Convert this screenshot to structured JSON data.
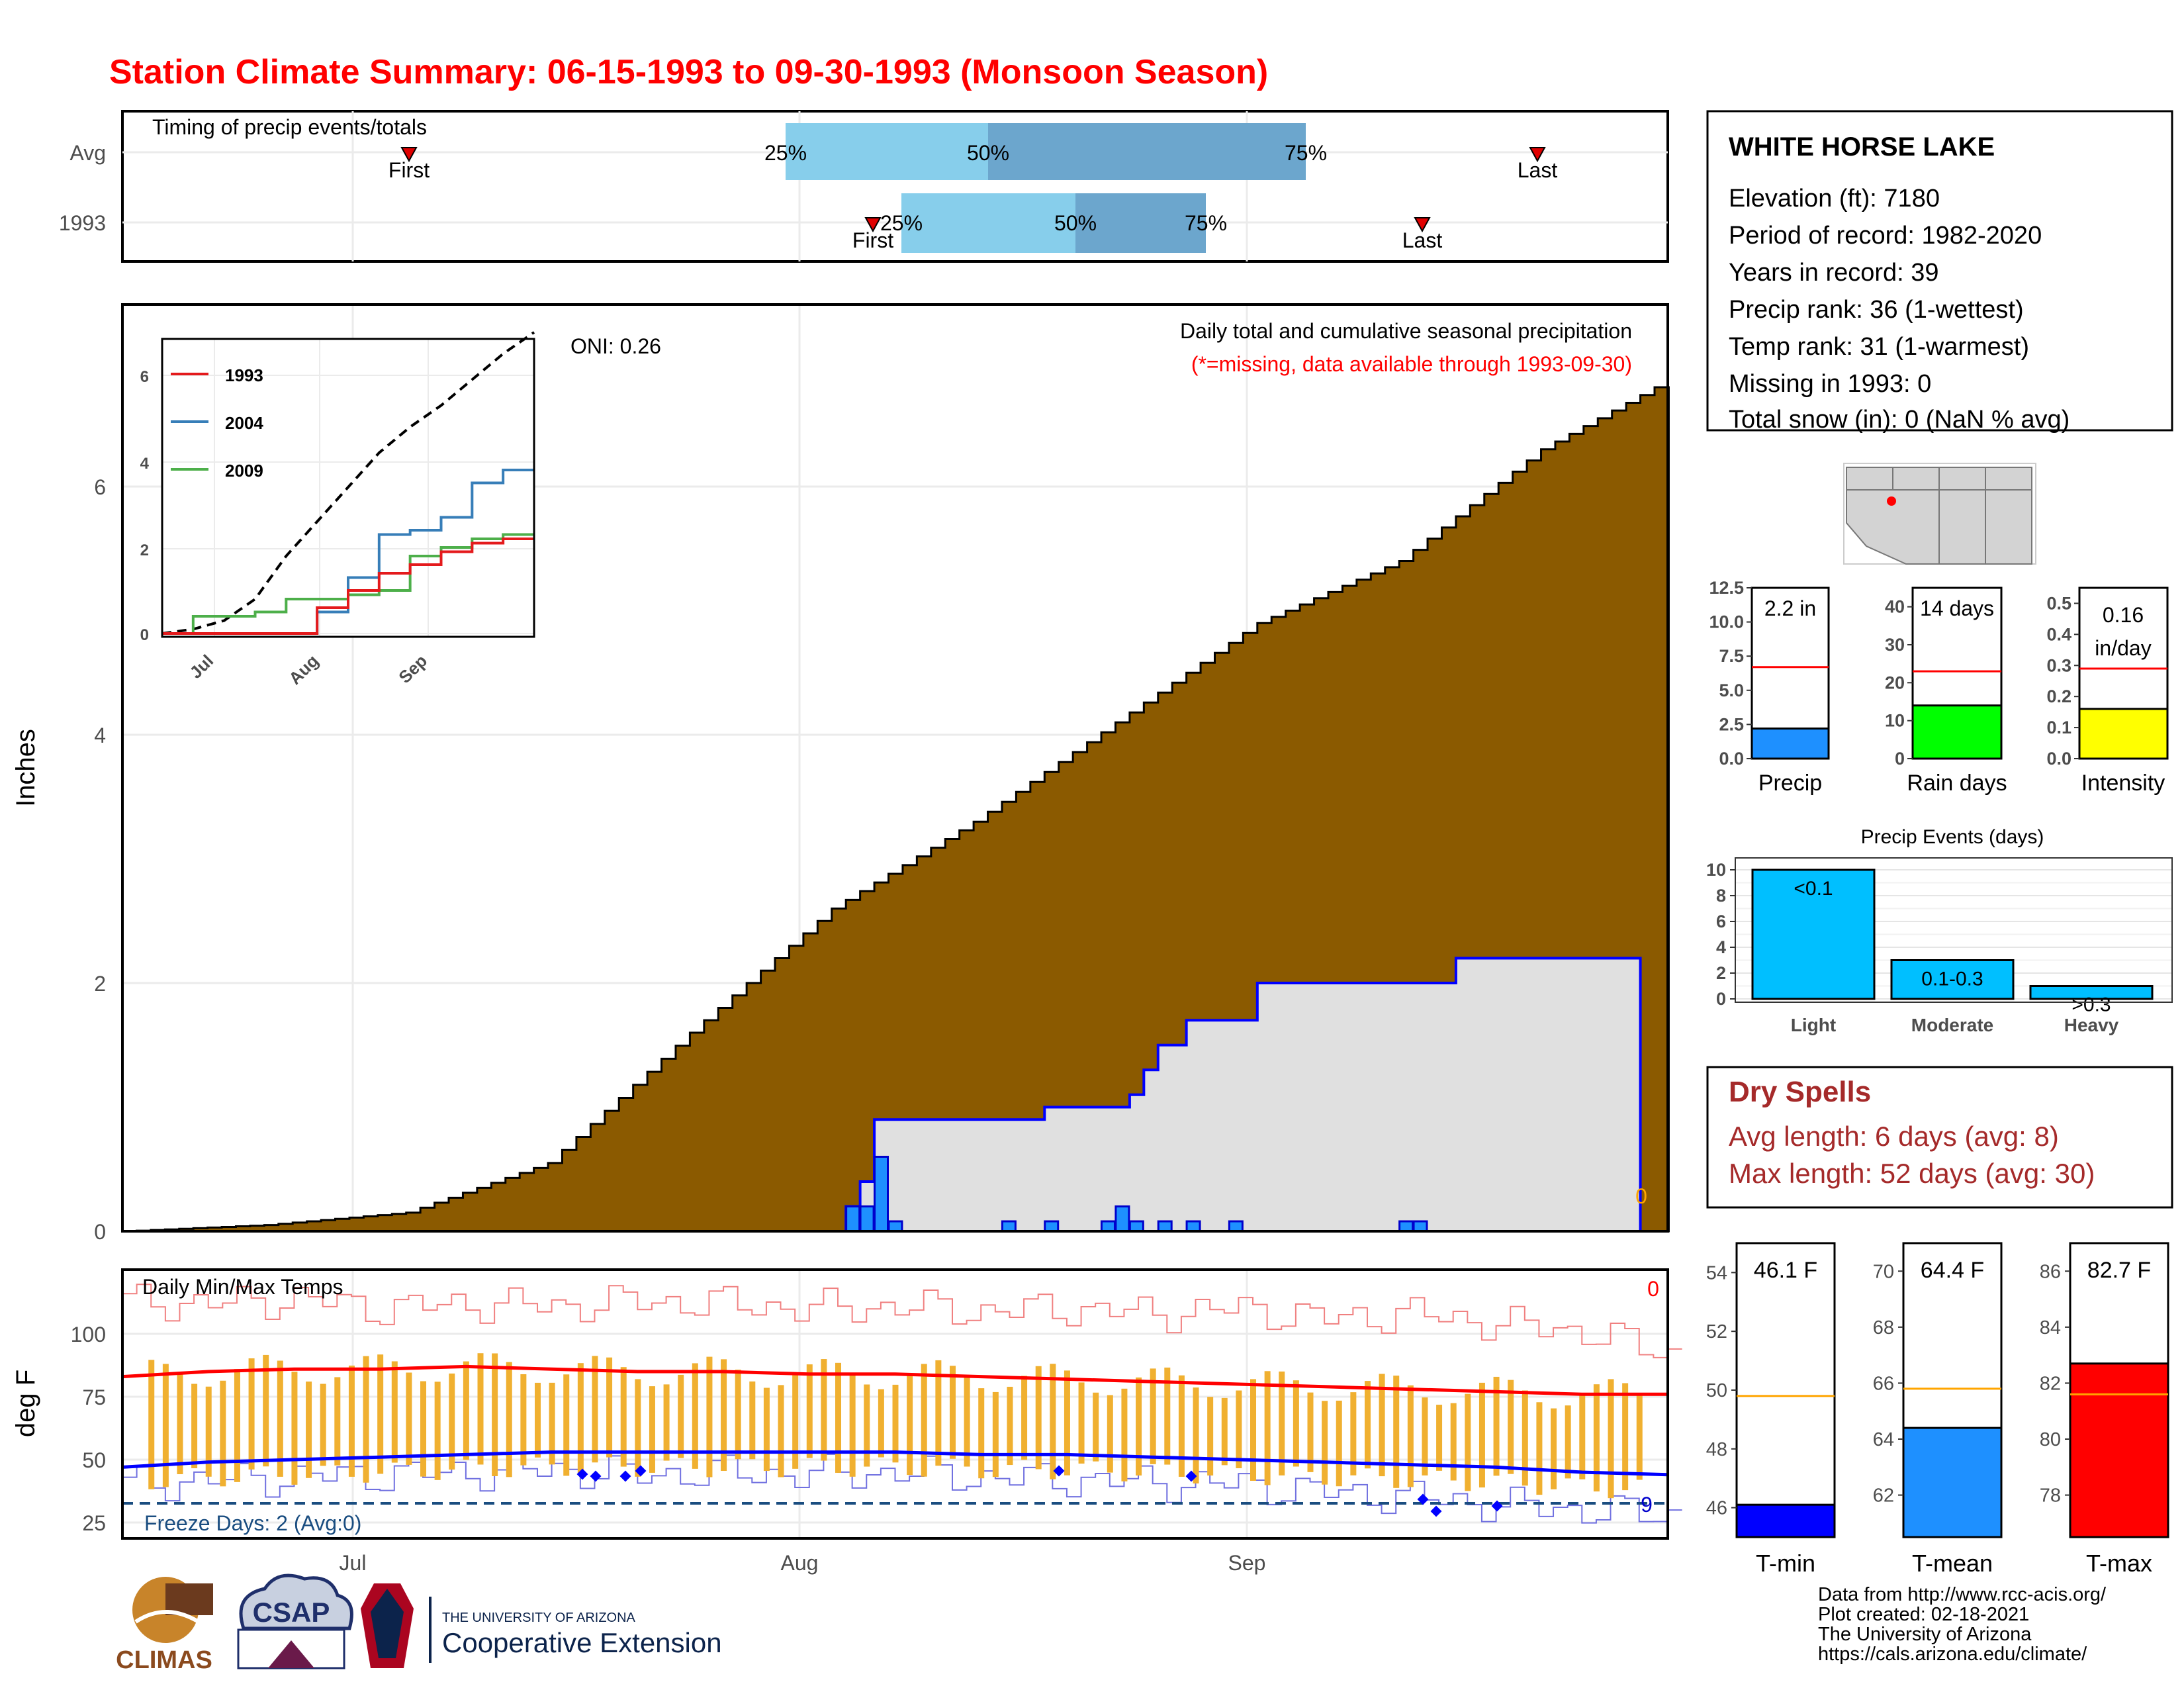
{
  "title": "Station Climate Summary: 06-15-1993 to 09-30-1993 (Monsoon Season)",
  "colors": {
    "title": "#ff0000",
    "precip_fill": "#8b5a00",
    "normal_fill": "#e0e0e0",
    "daily_bar": "#1e90ff",
    "timing_light": "#87ceeb",
    "timing_dark": "#6ca6cd",
    "tmax_line": "#ff0000",
    "tmin_line": "#0000ff",
    "range_bar": "#f0b030",
    "dry_spells": "#a52a2a",
    "inset_1993": "#e41a1c",
    "inset_2004": "#377eb8",
    "inset_2009": "#4daf4a"
  },
  "timing": {
    "title": "Timing of precip events/totals",
    "rows": [
      {
        "label": "Avg",
        "first": "First",
        "last": "Last",
        "p25": "25%",
        "p50": "50%",
        "p75": "75%",
        "first_doy": 12,
        "p25_doy": 44,
        "p50_doy": 54,
        "p75_doy": 68,
        "last_doy": 86
      },
      {
        "label": "1993",
        "first": "First",
        "last": "Last",
        "p25": "25%",
        "p50": "50%",
        "p75": "75%",
        "first_doy": 50,
        "p25_doy": 51,
        "p50_doy": 59,
        "p75_doy": 65,
        "last_doy": 82
      }
    ]
  },
  "precip_panel": {
    "ylabel": "Inches",
    "header": "Daily total and cumulative seasonal precipitation",
    "note": "(*=missing, data available through 1993-09-30)",
    "oni": "ONI: 0.26",
    "zero_label": "0",
    "y_ticks": [
      "0",
      "2",
      "4",
      "6"
    ],
    "ylim": [
      0,
      7.5
    ]
  },
  "inset": {
    "series": [
      {
        "name": "1993",
        "color": "#e41a1c"
      },
      {
        "name": "2004",
        "color": "#377eb8"
      },
      {
        "name": "2009",
        "color": "#4daf4a"
      }
    ],
    "y_ticks": [
      "0",
      "2",
      "4",
      "6"
    ],
    "x_ticks": [
      "Jul",
      "Aug",
      "Sep"
    ]
  },
  "temp_panel": {
    "title": "Daily Min/Max Temps",
    "ylabel": "deg F",
    "y_ticks": [
      "25",
      "50",
      "75",
      "100"
    ],
    "freeze": "Freeze Days: 2 (Avg:0)",
    "right_top": "0",
    "right_bottom": "9"
  },
  "x_ticks": [
    "Jul",
    "Aug",
    "Sep"
  ],
  "station": {
    "name": "WHITE HORSE LAKE",
    "lines": [
      "Elevation (ft): 7180",
      "Period of record: 1982-2020",
      "Years in record: 39",
      "Precip rank: 36 (1-wettest)",
      "Temp rank: 31 (1-warmest)",
      "Missing in 1993: 0",
      "Total snow (in): 0 (NaN % avg)"
    ]
  },
  "mini_bars": [
    {
      "label": "Precip",
      "value_text": "2.2 in",
      "value": 2.2,
      "avg": 6.7,
      "ymax": 12.5,
      "color": "#1e90ff",
      "ticks": [
        "0.0",
        "2.5",
        "5.0",
        "7.5",
        "10.0",
        "12.5"
      ]
    },
    {
      "label": "Rain days",
      "value_text": "14 days",
      "value": 14,
      "avg": 23,
      "ymax": 45,
      "color": "#00ff00",
      "ticks": [
        "0",
        "10",
        "20",
        "30",
        "40"
      ]
    },
    {
      "label": "Intensity",
      "value_text": "0.16",
      "value_text2": "in/day",
      "value": 0.16,
      "avg": 0.29,
      "ymax": 0.55,
      "color": "#ffff00",
      "ticks": [
        "0.0",
        "0.1",
        "0.2",
        "0.3",
        "0.4",
        "0.5"
      ]
    }
  ],
  "events": {
    "title": "Precip Events (days)",
    "categories": [
      "Light",
      "Moderate",
      "Heavy"
    ],
    "bar_labels": [
      "<0.1",
      "0.1-0.3",
      ">0.3"
    ],
    "values": [
      10,
      3,
      1
    ],
    "ticks": [
      "0",
      "2",
      "4",
      "6",
      "8",
      "10"
    ],
    "color": "#00bfff"
  },
  "dry_spells": {
    "title": "Dry Spells",
    "avg": "Avg length: 6 days (avg: 8)",
    "max": "Max length: 52 days (avg: 30)"
  },
  "temp_bars": [
    {
      "label": "T-min",
      "value_text": "46.1 F",
      "value": 46.1,
      "avg": 49.8,
      "ymin": 45,
      "ymax": 55,
      "color": "#0000ff",
      "ticks": [
        "46",
        "48",
        "50",
        "52",
        "54"
      ]
    },
    {
      "label": "T-mean",
      "value_text": "64.4 F",
      "value": 64.4,
      "avg": 65.8,
      "ymin": 60.5,
      "ymax": 71,
      "color": "#1e90ff",
      "ticks": [
        "62",
        "64",
        "66",
        "68",
        "70"
      ]
    },
    {
      "label": "T-max",
      "value_text": "82.7 F",
      "value": 82.7,
      "avg": 81.6,
      "ymin": 76.5,
      "ymax": 87,
      "color": "#ff0000",
      "ticks": [
        "78",
        "80",
        "82",
        "84",
        "86"
      ]
    }
  ],
  "footer": {
    "lines": [
      "Data from http://www.rcc-acis.org/",
      "Plot created: 02-18-2021",
      "The University of Arizona",
      "https://cals.arizona.edu/climate/"
    ],
    "logo_climas": "CLIMAS",
    "logo_csap": "CSAP",
    "ua_top": "THE UNIVERSITY OF ARIZONA",
    "ua_bottom": "Cooperative Extension"
  },
  "chart_data": [
    {
      "type": "area",
      "title": "Daily total and cumulative seasonal precipitation",
      "ylabel": "Inches",
      "ylim": [
        0,
        7.5
      ],
      "x": "day of season (0 = Jun 15)",
      "series": [
        {
          "name": "Average cumulative",
          "x": [
            0,
            10,
            20,
            30,
            40,
            50,
            60,
            70,
            80,
            90,
            100,
            108
          ],
          "values": [
            0.0,
            0.05,
            0.15,
            0.55,
            1.6,
            2.6,
            3.3,
            4.1,
            4.9,
            5.4,
            6.3,
            6.8
          ]
        },
        {
          "name": "1993 cumulative",
          "x": [
            0,
            51,
            52,
            53,
            55,
            62,
            65,
            70,
            71,
            72,
            73,
            75,
            80,
            90,
            94,
            107
          ],
          "values": [
            0,
            0.2,
            0.4,
            0.9,
            0.9,
            0.9,
            1.0,
            1.0,
            1.1,
            1.3,
            1.5,
            1.7,
            2.0,
            2.0,
            2.2,
            2.2
          ]
        },
        {
          "name": "1993 daily",
          "x": [
            52,
            53,
            54,
            55,
            63,
            66,
            70,
            71,
            72,
            74,
            76,
            79,
            91,
            92
          ],
          "values": [
            0.2,
            0.2,
            0.6,
            0.08,
            0.08,
            0.08,
            0.08,
            0.2,
            0.08,
            0.08,
            0.08,
            0.08,
            0.08,
            0.08
          ]
        }
      ]
    },
    {
      "type": "line",
      "title": "Daily Min/Max Temps",
      "ylabel": "deg F",
      "ylim": [
        20,
        120
      ],
      "series": [
        {
          "name": "Avg max",
          "values": [
            83,
            85,
            86,
            86,
            87,
            86,
            85,
            85,
            84,
            84,
            83,
            82,
            81,
            80,
            79,
            78,
            77,
            76,
            76
          ]
        },
        {
          "name": "Avg min",
          "values": [
            47,
            49,
            50,
            51,
            52,
            53,
            53,
            53,
            53,
            53,
            52,
            52,
            51,
            50,
            49,
            48,
            47,
            45,
            44
          ]
        },
        {
          "name": "Record high",
          "values": [
            113,
            112,
            114,
            110,
            112,
            111,
            113,
            112,
            110,
            111,
            109,
            110,
            108,
            110,
            106,
            108,
            104,
            101,
            92
          ]
        },
        {
          "name": "Record low",
          "values": [
            40,
            42,
            43,
            44,
            45,
            46,
            44,
            45,
            44,
            45,
            43,
            42,
            41,
            40,
            37,
            35,
            32,
            30,
            28
          ]
        }
      ]
    },
    {
      "type": "line",
      "title": "",
      "x_ticks": [
        "Jul",
        "Aug",
        "Sep"
      ],
      "series": [
        {
          "name": "1993",
          "values": [
            0,
            0,
            0,
            0,
            0,
            0.6,
            1.0,
            1.4,
            1.6,
            1.9,
            2.1,
            2.2,
            2.2
          ]
        },
        {
          "name": "2004",
          "values": [
            0,
            0,
            0,
            0,
            0,
            0.5,
            1.3,
            2.3,
            2.4,
            2.7,
            3.5,
            3.8,
            3.8
          ]
        },
        {
          "name": "2009",
          "values": [
            0,
            0.4,
            0.4,
            0.5,
            0.8,
            0.8,
            0.9,
            1.0,
            1.8,
            2.0,
            2.2,
            2.3,
            2.3
          ]
        },
        {
          "name": "Average",
          "values": [
            0,
            0.1,
            0.3,
            0.8,
            1.8,
            2.6,
            3.4,
            4.2,
            4.8,
            5.3,
            5.9,
            6.5,
            7.0
          ]
        }
      ]
    }
  ]
}
